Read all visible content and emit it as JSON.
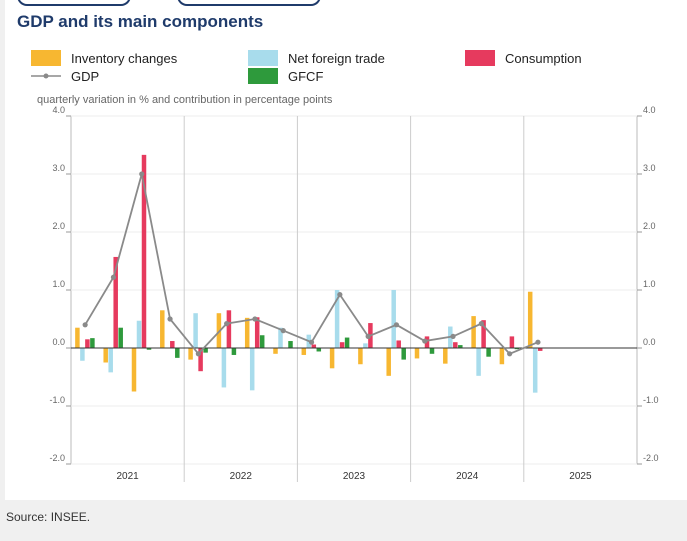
{
  "chart_data": {
    "type": "bar",
    "title": "GDP and its main components",
    "subtitle": "quarterly variation in % and contribution in percentage points",
    "source": "Source: INSEE.",
    "ylim": [
      -2.0,
      4.0
    ],
    "y_ticks": [
      "-2.0",
      "-1.0",
      "0.0",
      "1.0",
      "2.0",
      "3.0",
      "4.0"
    ],
    "years": [
      "2021",
      "2022",
      "2023",
      "2024",
      "2025"
    ],
    "quarters": [
      "2021Q1",
      "2021Q2",
      "2021Q3",
      "2021Q4",
      "2022Q1",
      "2022Q2",
      "2022Q3",
      "2022Q4",
      "2023Q1",
      "2023Q2",
      "2023Q3",
      "2023Q4",
      "2024Q1",
      "2024Q2",
      "2024Q3",
      "2024Q4",
      "2025Q1"
    ],
    "series": [
      {
        "name": "Inventory changes",
        "color": "#f7b731",
        "kind": "bar",
        "values": [
          0.35,
          -0.25,
          -0.75,
          0.65,
          -0.2,
          0.6,
          0.52,
          -0.1,
          -0.12,
          -0.35,
          -0.28,
          -0.48,
          -0.18,
          -0.27,
          0.55,
          -0.28,
          0.97
        ]
      },
      {
        "name": "Net foreign trade",
        "color": "#a8dcec",
        "kind": "bar",
        "values": [
          -0.22,
          -0.42,
          0.47,
          0.0,
          0.6,
          -0.68,
          -0.73,
          0.35,
          0.23,
          1.0,
          0.08,
          1.0,
          0.0,
          0.37,
          -0.48,
          0.0,
          -0.77
        ]
      },
      {
        "name": "Consumption",
        "color": "#e63a5e",
        "kind": "bar",
        "values": [
          0.15,
          1.57,
          3.33,
          0.12,
          -0.4,
          0.65,
          0.53,
          0.0,
          0.06,
          0.1,
          0.43,
          0.13,
          0.2,
          0.1,
          0.48,
          0.2,
          -0.05
        ]
      },
      {
        "name": "GFCF",
        "color": "#2e9a3c",
        "kind": "bar",
        "values": [
          0.17,
          0.35,
          -0.03,
          -0.17,
          -0.08,
          -0.12,
          0.22,
          0.12,
          -0.06,
          0.18,
          0.0,
          -0.2,
          -0.1,
          0.05,
          -0.15,
          -0.02,
          0.0
        ]
      },
      {
        "name": "GDP",
        "color": "#8a8a8a",
        "kind": "line",
        "values": [
          0.4,
          1.22,
          3.0,
          0.5,
          -0.1,
          0.42,
          0.5,
          0.3,
          0.1,
          0.92,
          0.2,
          0.4,
          0.12,
          0.2,
          0.42,
          -0.1,
          0.1
        ]
      }
    ]
  }
}
